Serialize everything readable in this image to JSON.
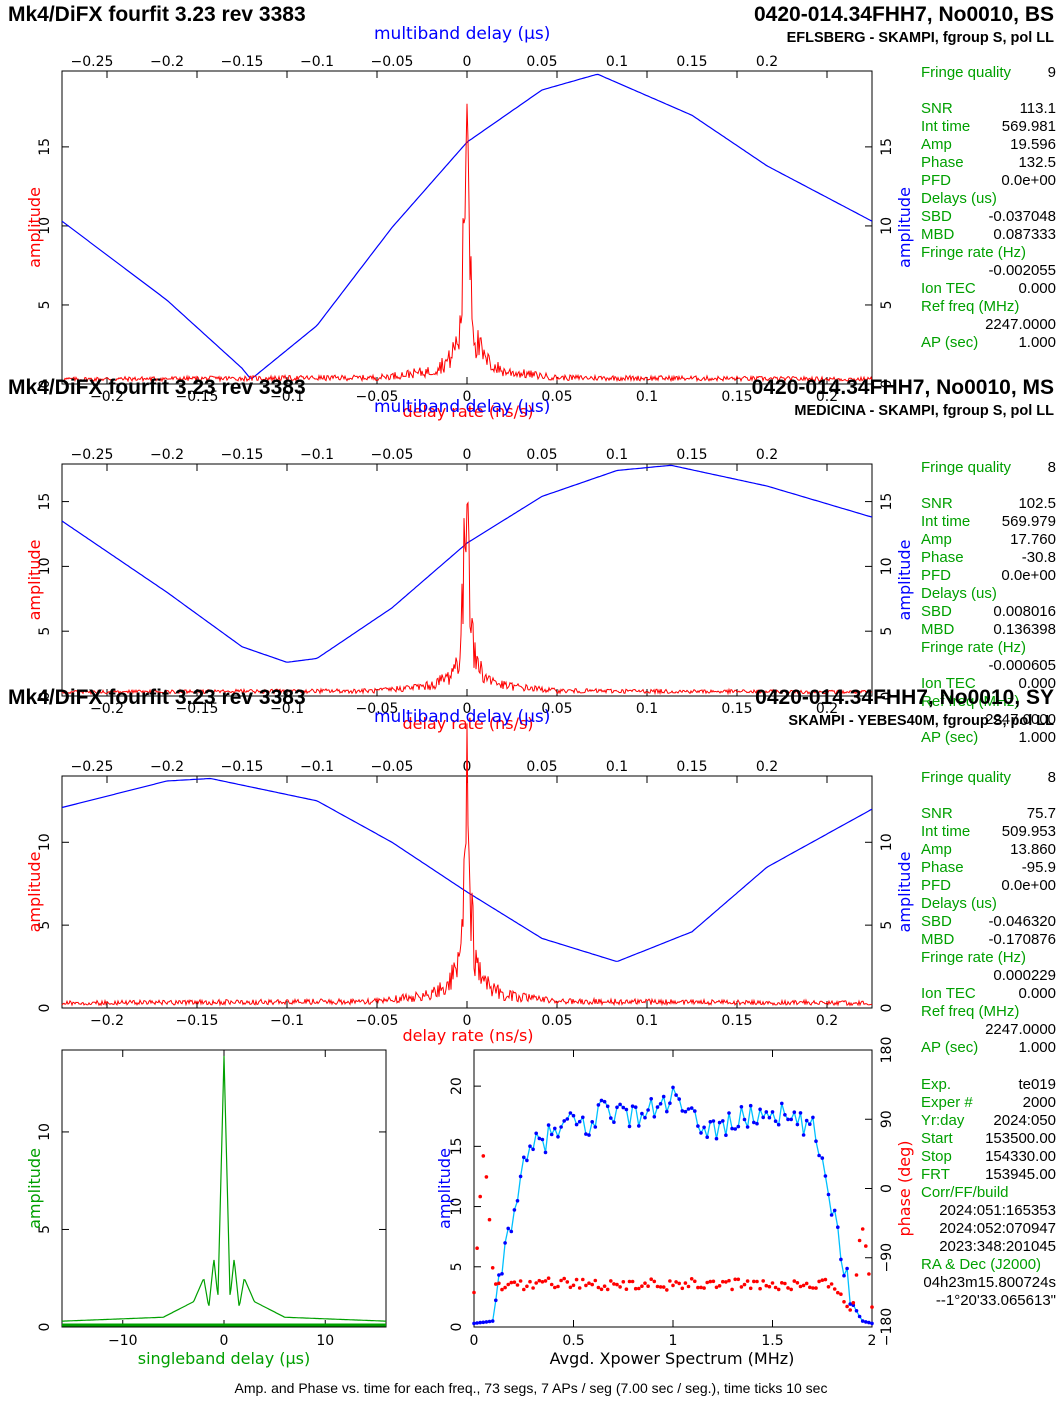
{
  "footer": "Amp. and Phase vs. time for each freq., 73 segs, 7 APs / seg (7.00 sec / seg.), time ticks 10 sec",
  "colors": {
    "amp": "#ff0000",
    "mbd": "#0000ff",
    "sbd": "#00a000",
    "label": "#00a000",
    "xpow": "#00c0ff"
  },
  "panels": [
    {
      "program": "Mk4/DiFX fourfit 3.23 rev 3383",
      "source": "0420-014.34FHH7, No0010, BS",
      "baseline": "EFLSBERG - SKAMPI, fgroup S, pol LL",
      "params": [
        {
          "k": "Fringe quality",
          "v": "9"
        },
        {
          "k": "",
          "v": ""
        },
        {
          "k": "SNR",
          "v": "113.1"
        },
        {
          "k": "Int time",
          "v": "569.981"
        },
        {
          "k": "Amp",
          "v": "19.596"
        },
        {
          "k": "Phase",
          "v": "132.5"
        },
        {
          "k": "PFD",
          "v": "0.0e+00"
        },
        {
          "k": "Delays (us)",
          "v": ""
        },
        {
          "k": "SBD",
          "v": "-0.037048"
        },
        {
          "k": "MBD",
          "v": "0.087333"
        },
        {
          "k": "Fringe rate (Hz)",
          "v": ""
        },
        {
          "k": "",
          "v": "-0.002055"
        },
        {
          "k": "Ion TEC",
          "v": "0.000"
        },
        {
          "k": "Ref freq (MHz)",
          "v": ""
        },
        {
          "k": "",
          "v": "2247.0000"
        },
        {
          "k": "AP (sec)",
          "v": "1.000"
        }
      ],
      "chart_data": {
        "type": "line",
        "xlabel": "delay rate (ns/s)",
        "ylabel": "amplitude",
        "top_xlabel": "multiband delay (μs)",
        "right_ylabel": "amplitude",
        "xlim": [
          -0.225,
          0.225
        ],
        "top_xlim": [
          -0.27,
          0.27
        ],
        "ylim": [
          0,
          19.8
        ],
        "x_ticks": [
          -0.2,
          -0.15,
          -0.1,
          -0.05,
          0,
          0.05,
          0.1,
          0.15,
          0.2
        ],
        "top_ticks": [
          -0.25,
          -0.2,
          -0.15,
          -0.1,
          -0.05,
          0,
          0.05,
          0.1,
          0.15,
          0.2
        ],
        "y_ticks": [
          0,
          5,
          10,
          15
        ],
        "series": [
          {
            "name": "delay rate amplitude",
            "x": [
              -0.225,
              -0.05,
              -0.02,
              -0.01,
              -0.004,
              -0.002,
              0,
              0.002,
              0.004,
              0.01,
              0.02,
              0.05,
              0.225
            ],
            "y": [
              0.3,
              0.4,
              0.8,
              1.5,
              3,
              8,
              19.6,
              8,
              3,
              1.5,
              0.8,
              0.4,
              0.3
            ]
          },
          {
            "name": "multiband delay amplitude",
            "x": [
              -0.27,
              -0.2,
              -0.15,
              -0.144,
              -0.1,
              -0.05,
              0,
              0.05,
              0.087,
              0.15,
              0.2,
              0.27
            ],
            "y": [
              10.3,
              5.3,
              1.0,
              0.3,
              3.7,
              9.9,
              15.3,
              18.6,
              19.6,
              17.0,
              13.8,
              10.3
            ]
          }
        ]
      }
    },
    {
      "program": "Mk4/DiFX fourfit 3.23 rev 3383",
      "source": "0420-014.34FHH7, No0010, MS",
      "baseline": "MEDICINA - SKAMPI, fgroup S, pol LL",
      "params": [
        {
          "k": "Fringe quality",
          "v": "8"
        },
        {
          "k": "",
          "v": ""
        },
        {
          "k": "SNR",
          "v": "102.5"
        },
        {
          "k": "Int time",
          "v": "569.979"
        },
        {
          "k": "Amp",
          "v": "17.760"
        },
        {
          "k": "Phase",
          "v": "-30.8"
        },
        {
          "k": "PFD",
          "v": "0.0e+00"
        },
        {
          "k": "Delays (us)",
          "v": ""
        },
        {
          "k": "SBD",
          "v": "0.008016"
        },
        {
          "k": "MBD",
          "v": "0.136398"
        },
        {
          "k": "Fringe rate (Hz)",
          "v": ""
        },
        {
          "k": "",
          "v": "-0.000605"
        },
        {
          "k": "Ion TEC",
          "v": "0.000"
        },
        {
          "k": "Ref freq (MHz)",
          "v": ""
        },
        {
          "k": "",
          "v": "2247.0000"
        },
        {
          "k": "AP (sec)",
          "v": "1.000"
        }
      ],
      "chart_data": {
        "type": "line",
        "xlabel": "delay rate (ns/s)",
        "ylabel": "amplitude",
        "top_xlabel": "multiband delay (μs)",
        "right_ylabel": "amplitude",
        "xlim": [
          -0.225,
          0.225
        ],
        "top_xlim": [
          -0.27,
          0.27
        ],
        "ylim": [
          0,
          17.9
        ],
        "x_ticks": [
          -0.2,
          -0.15,
          -0.1,
          -0.05,
          0,
          0.05,
          0.1,
          0.15,
          0.2
        ],
        "top_ticks": [
          -0.25,
          -0.2,
          -0.15,
          -0.1,
          -0.05,
          0,
          0.05,
          0.1,
          0.15,
          0.2
        ],
        "y_ticks": [
          0,
          5,
          10,
          15
        ],
        "series": [
          {
            "name": "delay rate amplitude",
            "x": [
              -0.225,
              -0.05,
              -0.02,
              -0.01,
              -0.004,
              -0.002,
              0,
              0.002,
              0.004,
              0.01,
              0.02,
              0.05,
              0.225
            ],
            "y": [
              0.3,
              0.4,
              0.8,
              1.5,
              3,
              8,
              17.8,
              8,
              3,
              1.5,
              0.8,
              0.4,
              0.3
            ]
          },
          {
            "name": "multiband delay amplitude",
            "x": [
              -0.27,
              -0.2,
              -0.15,
              -0.12,
              -0.1,
              -0.05,
              0,
              0.05,
              0.1,
              0.136,
              0.2,
              0.27
            ],
            "y": [
              13.5,
              8.0,
              3.8,
              2.6,
              2.9,
              6.8,
              11.8,
              15.4,
              17.4,
              17.8,
              16.2,
              13.8
            ]
          }
        ]
      }
    },
    {
      "program": "Mk4/DiFX fourfit 3.23 rev 3383",
      "source": "0420-014.34FHH7, No0010, SY",
      "baseline": "SKAMPI - YEBES40M, fgroup S, pol LL",
      "params": [
        {
          "k": "Fringe quality",
          "v": "8"
        },
        {
          "k": "",
          "v": ""
        },
        {
          "k": "SNR",
          "v": "75.7"
        },
        {
          "k": "Int time",
          "v": "509.953"
        },
        {
          "k": "Amp",
          "v": "13.860"
        },
        {
          "k": "Phase",
          "v": "-95.9"
        },
        {
          "k": "PFD",
          "v": "0.0e+00"
        },
        {
          "k": "Delays (us)",
          "v": ""
        },
        {
          "k": "SBD",
          "v": "-0.046320"
        },
        {
          "k": "MBD",
          "v": "-0.170876"
        },
        {
          "k": "Fringe rate (Hz)",
          "v": ""
        },
        {
          "k": "",
          "v": "0.000229"
        },
        {
          "k": "Ion TEC",
          "v": "0.000"
        },
        {
          "k": "Ref freq (MHz)",
          "v": ""
        },
        {
          "k": "",
          "v": "2247.0000"
        },
        {
          "k": "AP (sec)",
          "v": "1.000"
        }
      ],
      "chart_data": {
        "type": "line",
        "xlabel": "delay rate (ns/s)",
        "ylabel": "amplitude",
        "top_xlabel": "multiband delay (μs)",
        "right_ylabel": "amplitude",
        "xlim": [
          -0.225,
          0.225
        ],
        "top_xlim": [
          -0.27,
          0.27
        ],
        "ylim": [
          0,
          14.0
        ],
        "x_ticks": [
          -0.2,
          -0.15,
          -0.1,
          -0.05,
          0,
          0.05,
          0.1,
          0.15,
          0.2
        ],
        "top_ticks": [
          -0.25,
          -0.2,
          -0.15,
          -0.1,
          -0.05,
          0,
          0.05,
          0.1,
          0.15,
          0.2
        ],
        "y_ticks": [
          0,
          5,
          10
        ],
        "series": [
          {
            "name": "delay rate amplitude",
            "x": [
              -0.225,
              -0.05,
              -0.02,
              -0.01,
              -0.004,
              -0.002,
              0,
              0.002,
              0.004,
              0.01,
              0.02,
              0.05,
              0.225
            ],
            "y": [
              0.3,
              0.4,
              0.8,
              1.5,
              3,
              7,
              13.9,
              7,
              3,
              1.5,
              0.8,
              0.4,
              0.3
            ]
          },
          {
            "name": "multiband delay amplitude",
            "x": [
              -0.27,
              -0.2,
              -0.171,
              -0.1,
              -0.05,
              0,
              0.05,
              0.1,
              0.15,
              0.2,
              0.27
            ],
            "y": [
              12.1,
              13.7,
              13.85,
              12.5,
              10.0,
              7.0,
              4.2,
              2.8,
              4.6,
              8.5,
              12.0
            ]
          }
        ]
      }
    }
  ],
  "sbd_panel": {
    "chart_data": {
      "type": "line",
      "xlabel": "singleband delay (μs)",
      "ylabel": "amplitude",
      "xlim": [
        -16,
        16
      ],
      "ylim": [
        0,
        14.2
      ],
      "x_ticks": [
        -10,
        0,
        10
      ],
      "y_ticks": [
        0,
        5,
        10
      ],
      "series": [
        {
          "name": "singleband delay amplitude",
          "x": [
            -16,
            -6,
            -3,
            -2,
            -1.5,
            -1,
            -0.6,
            0,
            0.6,
            1,
            1.5,
            2,
            3,
            6,
            16
          ],
          "y": [
            0.3,
            0.5,
            1.3,
            2.5,
            1.0,
            3.5,
            1.5,
            13.9,
            1.5,
            3.5,
            1.0,
            2.5,
            1.3,
            0.5,
            0.3
          ]
        }
      ]
    }
  },
  "xpow_panel": {
    "chart_data": {
      "type": "scatter",
      "xlabel": "Avgd. Xpower Spectrum (MHz)",
      "ylabel": "amplitude",
      "right_ylabel": "phase (deg)",
      "xlim": [
        0,
        2
      ],
      "ylim": [
        0,
        23
      ],
      "right_ylim": [
        -180,
        180
      ],
      "x_ticks": [
        0,
        0.5,
        1,
        1.5,
        2
      ],
      "x_tick_labels": [
        "0",
        "0.5",
        "1",
        "1.5",
        "2"
      ],
      "y_ticks": [
        0,
        5,
        10,
        15,
        20
      ],
      "right_ticks": [
        -180,
        -90,
        0,
        90,
        180
      ],
      "series": [
        {
          "name": "amplitude",
          "x": [
            0,
            0.1,
            0.15,
            0.2,
            0.25,
            0.3,
            0.4,
            0.5,
            0.6,
            0.65,
            0.7,
            0.8,
            0.9,
            1.0,
            1.1,
            1.2,
            1.3,
            1.4,
            1.5,
            1.6,
            1.7,
            1.75,
            1.8,
            1.85,
            1.9,
            1.95,
            2.0
          ],
          "y": [
            0.3,
            0.5,
            6,
            10,
            13,
            15,
            16,
            17,
            16.5,
            19,
            18,
            17.5,
            18,
            19,
            17,
            16.5,
            17,
            17.5,
            18,
            17,
            16.5,
            14,
            10,
            6,
            2,
            0.5,
            0.3
          ]
        },
        {
          "name": "phase",
          "x": [
            0,
            0.05,
            0.1,
            0.2,
            0.4,
            0.6,
            0.8,
            1.0,
            1.2,
            1.4,
            1.6,
            1.8,
            1.9,
            1.95,
            2.0
          ],
          "y": [
            -130,
            60,
            -125,
            -125,
            -122,
            -126,
            -124,
            -125,
            -123,
            -126,
            -125,
            -125,
            -160,
            -40,
            -150
          ]
        }
      ]
    }
  },
  "info": [
    {
      "k": "Exp.",
      "v": "te019"
    },
    {
      "k": "Exper #",
      "v": "2000"
    },
    {
      "k": "Yr:day",
      "v": "2024:050"
    },
    {
      "k": "Start",
      "v": "153500.00"
    },
    {
      "k": "Stop",
      "v": "154330.00"
    },
    {
      "k": "FRT",
      "v": "153945.00"
    },
    {
      "k": "Corr/FF/build",
      "v": ""
    },
    {
      "k": "",
      "v": "2024:051:165353"
    },
    {
      "k": "",
      "v": "2024:052:070947"
    },
    {
      "k": "",
      "v": "2023:348:201045"
    },
    {
      "k": "RA & Dec (J2000)",
      "v": ""
    },
    {
      "k": "",
      "v": "04h23m15.800724s"
    },
    {
      "k": "",
      "v": "--1°20'33.065613\""
    }
  ]
}
